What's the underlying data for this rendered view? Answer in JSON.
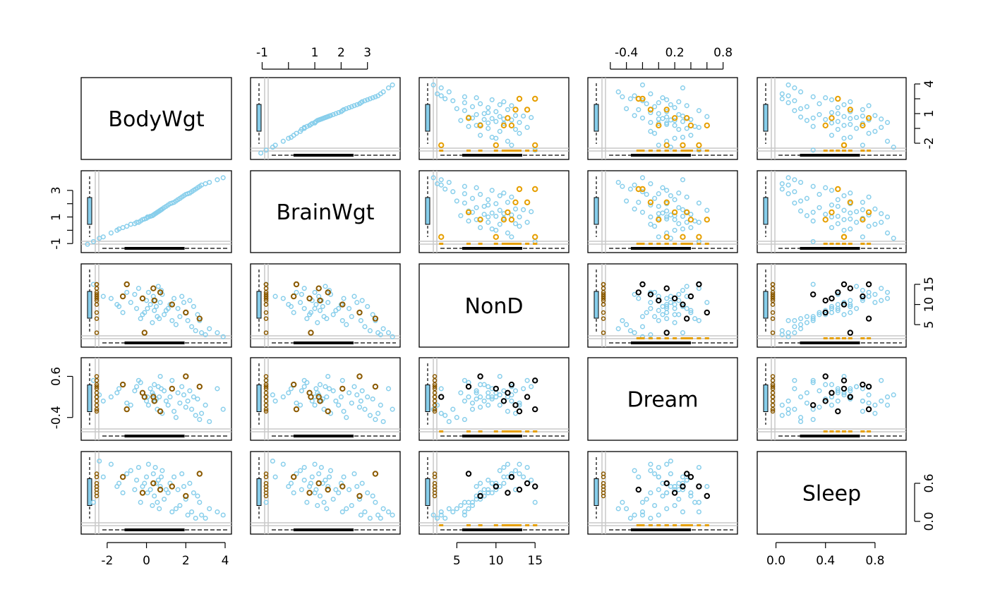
{
  "chart_data": {
    "type": "scatter",
    "kind": "scatterplot-matrix",
    "title": "",
    "variables": [
      "BodyWgt",
      "BrainWgt",
      "NonD",
      "Dream",
      "Sleep"
    ],
    "colors": {
      "observed": "#87CEEB",
      "imputed_x": "#E69F00",
      "imputed_y": "#8B5A00",
      "imputed_both": "#000000",
      "reference_line": "#C8C8C8"
    },
    "axes": {
      "top": [
        {
          "col": 1,
          "ticks": [
            -1,
            1,
            2,
            3
          ],
          "labels": [
            "-1",
            "1",
            "2",
            "3"
          ],
          "minor_ticks": [
            0
          ]
        },
        {
          "col": 3,
          "ticks": [
            -0.4,
            0.2,
            0.8
          ],
          "labels": [
            "-0.4",
            "0.2",
            "0.8"
          ],
          "minor_ticks": [
            -0.6,
            -0.2,
            0,
            0.4,
            0.6
          ]
        }
      ],
      "bottom": [
        {
          "col": 0,
          "ticks": [
            -2,
            0,
            2,
            4
          ],
          "labels": [
            "-2",
            "0",
            "2",
            "4"
          ]
        },
        {
          "col": 2,
          "ticks": [
            5,
            10,
            15
          ],
          "labels": [
            "5",
            "10",
            "15"
          ]
        },
        {
          "col": 4,
          "ticks": [
            0.0,
            0.4,
            0.8
          ],
          "labels": [
            "0.0",
            "0.4",
            "0.8"
          ]
        }
      ],
      "left": [
        {
          "row": 1,
          "ticks": [
            3,
            1,
            -1
          ],
          "labels": [
            "3",
            "1",
            "-1"
          ],
          "minor_ticks": [
            2,
            0
          ]
        },
        {
          "row": 3,
          "ticks": [
            0.6,
            -0.4
          ],
          "labels": [
            "0.6",
            "-0.4"
          ]
        }
      ],
      "right": [
        {
          "row": 0,
          "ticks": [
            4,
            1,
            -2
          ],
          "labels": [
            "4",
            "1",
            "-2"
          ],
          "minor_ticks": [
            2.5,
            -0.5
          ]
        },
        {
          "row": 2,
          "ticks": [
            15,
            10,
            5
          ],
          "labels": [
            "15",
            "10",
            "5"
          ]
        },
        {
          "row": 4,
          "ticks": [
            0.6,
            0.0
          ],
          "labels": [
            "0.6",
            "0.0"
          ]
        }
      ]
    },
    "ranges": {
      "BodyWgt": [
        -3,
        4
      ],
      "BrainWgt": [
        -1.2,
        4.0
      ],
      "NonD": [
        1,
        18.5
      ],
      "Dream": [
        -0.8,
        0.9
      ],
      "Sleep": [
        -0.1,
        1.0
      ]
    },
    "observations": {
      "BodyWgt": [
        -3.0,
        -2.7,
        -2.4,
        -2.2,
        -1.8,
        -1.5,
        -1.4,
        -1.2,
        -1.0,
        -0.8,
        -0.6,
        -0.5,
        -0.4,
        -0.3,
        -0.2,
        -0.1,
        0.0,
        0.05,
        0.1,
        0.2,
        0.3,
        0.35,
        0.4,
        0.45,
        0.5,
        0.55,
        0.6,
        0.65,
        0.7,
        0.75,
        0.8,
        0.9,
        1.0,
        1.1,
        1.2,
        1.3,
        1.4,
        1.5,
        1.6,
        1.7,
        1.8,
        1.9,
        2.0,
        2.1,
        2.2,
        2.3,
        2.4,
        2.5,
        2.6,
        2.7,
        2.8,
        3.0,
        3.2,
        3.6,
        3.9
      ],
      "BrainWgt": [
        -1.05,
        -0.85,
        -0.6,
        -0.5,
        -0.2,
        0.0,
        0.1,
        0.2,
        0.3,
        0.45,
        0.5,
        0.6,
        0.6,
        0.7,
        0.8,
        0.85,
        0.9,
        1.0,
        1.0,
        1.05,
        1.1,
        1.15,
        1.2,
        1.25,
        1.3,
        1.35,
        1.4,
        1.45,
        1.5,
        1.55,
        1.6,
        1.7,
        1.8,
        1.9,
        2.0,
        2.05,
        2.1,
        2.2,
        2.3,
        2.4,
        2.5,
        2.6,
        2.7,
        2.75,
        2.8,
        2.9,
        3.0,
        3.1,
        3.2,
        3.3,
        3.4,
        3.5,
        3.6,
        3.8,
        3.95
      ],
      "NonD": [
        null,
        15.0,
        null,
        12.0,
        11.5,
        10.0,
        9.5,
        8.0,
        13.0,
        10.5,
        12.5,
        9.0,
        14.0,
        6.5,
        7.5,
        8.0,
        11.0,
        9.0,
        13.0,
        10.0,
        5.5,
        12.0,
        8.5,
        11.0,
        9.5,
        7.0,
        14.5,
        6.5,
        10.5,
        13.5,
        12.5,
        7.5,
        8.5,
        9.0,
        10.0,
        6.0,
        11.5,
        5.0,
        9.0,
        7.0,
        12.0,
        10.5,
        8.0,
        6.0,
        11.0,
        4.5,
        9.5,
        3.5,
        7.5,
        6.0,
        3.0,
        2.5,
        4.0,
        3.0,
        2.0
      ],
      "Dream": [
        null,
        0.5,
        0.15,
        0.0,
        0.1,
        0.2,
        0.3,
        0.4,
        -0.05,
        -0.1,
        0.25,
        0.35,
        0.5,
        0.45,
        0.2,
        0.1,
        0.0,
        0.1,
        -0.1,
        0.3,
        0.2,
        0.15,
        0.4,
        0.0,
        0.05,
        -0.2,
        0.35,
        0.1,
        0.6,
        0.3,
        -0.3,
        0.25,
        0.0,
        -0.1,
        0.1,
        0.5,
        -0.25,
        -0.4,
        0.2,
        -0.05,
        0.35,
        0.15,
        -0.15,
        0.0,
        0.25,
        -0.2,
        0.1,
        -0.35,
        0.05,
        -0.45,
        -0.3,
        -0.1,
        -0.5,
        0.3,
        -0.2
      ],
      "Sleep": [
        null,
        0.3,
        0.95,
        0.7,
        0.9,
        0.55,
        0.6,
        0.45,
        0.75,
        0.8,
        0.5,
        0.65,
        0.85,
        0.3,
        0.55,
        0.6,
        0.7,
        0.45,
        0.9,
        0.5,
        0.25,
        0.75,
        0.4,
        0.85,
        0.6,
        0.3,
        0.65,
        0.2,
        0.55,
        0.7,
        0.8,
        0.35,
        0.5,
        0.45,
        0.6,
        0.15,
        0.7,
        0.2,
        0.5,
        0.25,
        0.75,
        0.55,
        0.35,
        0.1,
        0.6,
        0.15,
        0.45,
        0.05,
        0.4,
        0.3,
        0.1,
        0.05,
        0.2,
        0.15,
        0.1
      ]
    },
    "imputed": {
      "NonD": [
        {
          "value": 15.0
        },
        {
          "value": 12.0
        },
        {
          "value": 11.5
        },
        {
          "value": 14.0
        },
        {
          "value": 13.0
        },
        {
          "value": 10.0
        },
        {
          "value": 8.0
        },
        {
          "value": 6.5
        },
        {
          "value": 12.5
        },
        {
          "value": 15.0
        },
        {
          "value": 3.0
        },
        {
          "value": 11.0
        }
      ],
      "Dream": [
        {
          "value": 0.5
        },
        {
          "value": 0.4
        },
        {
          "value": 0.2
        },
        {
          "value": 0.1
        },
        {
          "value": -0.25
        },
        {
          "value": 0.3
        },
        {
          "value": 0.6
        },
        {
          "value": 0.35
        },
        {
          "value": -0.1
        },
        {
          "value": -0.2
        },
        {
          "value": 0.1
        },
        {
          "value": 0.0
        }
      ],
      "Sleep": [
        {
          "value": 0.55
        },
        {
          "value": 0.7
        },
        {
          "value": 0.45
        },
        {
          "value": 0.6
        },
        {
          "value": 0.5
        },
        {
          "value": 0.55
        },
        {
          "value": 0.4
        },
        {
          "value": 0.75
        }
      ]
    },
    "diagonal_labels": [
      "BodyWgt",
      "BrainWgt",
      "NonD",
      "Dream",
      "Sleep"
    ]
  }
}
